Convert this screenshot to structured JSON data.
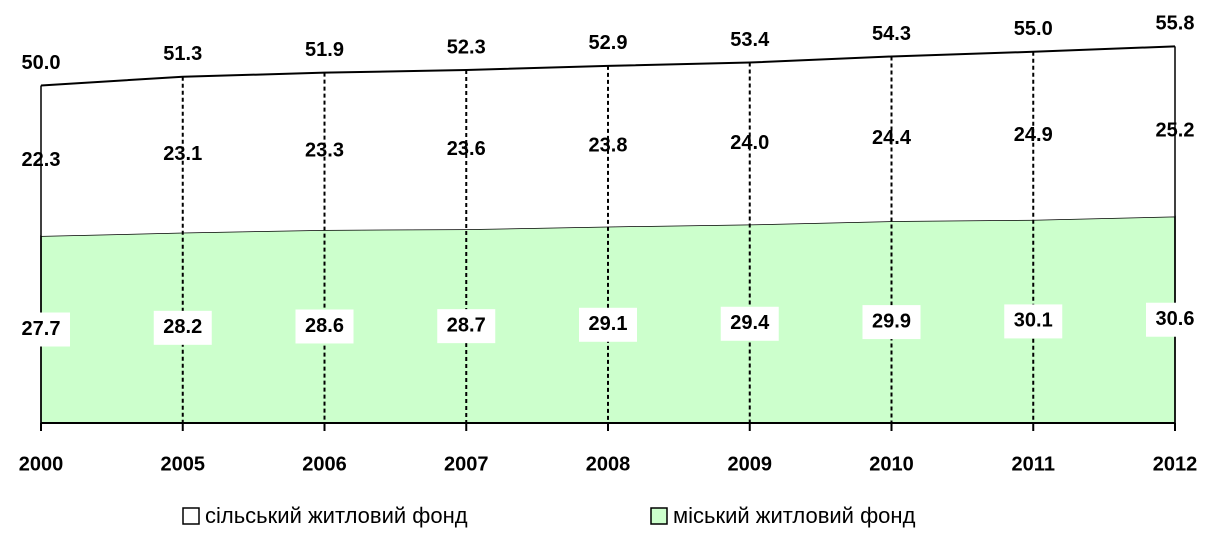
{
  "chart_data": {
    "type": "stacked_area",
    "categories": [
      "2000",
      "2005",
      "2006",
      "2007",
      "2008",
      "2009",
      "2010",
      "2011",
      "2012"
    ],
    "series": [
      {
        "name": "сільський житловий фонд",
        "color": "#ffffff",
        "values": [
          22.3,
          23.1,
          23.3,
          23.6,
          23.8,
          24.0,
          24.4,
          24.9,
          25.2
        ],
        "value_labels": [
          "22.3",
          "23.1",
          "23.3",
          "23.6",
          "23.8",
          "24.0",
          "24.4",
          "24.9",
          "25.2"
        ]
      },
      {
        "name": "міський житловий фонд",
        "color": "#ccffcc",
        "values": [
          27.7,
          28.2,
          28.6,
          28.7,
          29.1,
          29.4,
          29.9,
          30.1,
          30.6
        ],
        "value_labels": [
          "27.7",
          "28.2",
          "28.6",
          "28.7",
          "29.1",
          "29.4",
          "29.9",
          "30.1",
          "30.6"
        ]
      }
    ],
    "totals": {
      "values": [
        50.0,
        51.3,
        51.9,
        52.3,
        52.9,
        53.4,
        54.3,
        55.0,
        55.8
      ],
      "value_labels": [
        "50.0",
        "51.3",
        "51.9",
        "52.3",
        "52.9",
        "53.4",
        "54.3",
        "55.0",
        "55.8"
      ]
    }
  }
}
